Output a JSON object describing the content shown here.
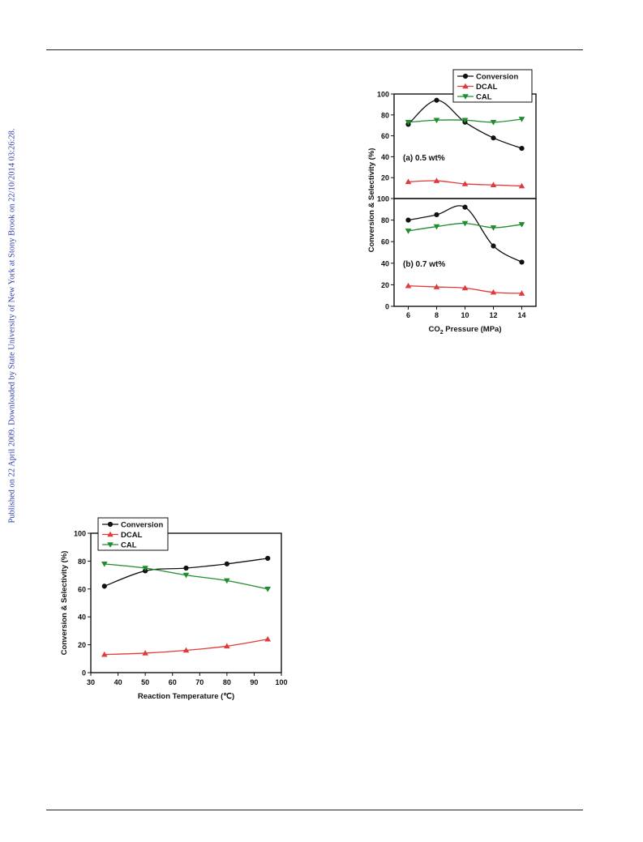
{
  "watermark": "Published on 22 April 2009. Downloaded by State University of New York at Stony Brook on 22/10/2014 03:26:28.",
  "chart_data": [
    {
      "id": "pressure",
      "type": "line",
      "xlabel": "CO",
      "xlabel_sub": "2",
      "xlabel_rest": " Pressure (MPa)",
      "ylabel": "Conversion & Selectivity (%)",
      "x": [
        6,
        8,
        10,
        12,
        14
      ],
      "xticks": [
        "6",
        "8",
        "10",
        "12",
        "14"
      ],
      "xlim": [
        5,
        15
      ],
      "legend": [
        {
          "name": "Conversion",
          "color": "#111111",
          "marker": "circle"
        },
        {
          "name": "DCAL",
          "color": "#e23a3a",
          "marker": "triangle-up"
        },
        {
          "name": "CAL",
          "color": "#1f8c2e",
          "marker": "triangle-down"
        }
      ],
      "legend_position": "top-right",
      "panels": [
        {
          "label": "(a)  0.5 wt%",
          "ylim": [
            0,
            100
          ],
          "yticks": [
            "20",
            "40",
            "60",
            "80",
            "100"
          ],
          "series": [
            {
              "name": "Conversion",
              "values": [
                71,
                94,
                73,
                58,
                48
              ]
            },
            {
              "name": "DCAL",
              "values": [
                16,
                17,
                14,
                13,
                12
              ]
            },
            {
              "name": "CAL",
              "values": [
                73,
                75,
                75,
                73,
                76
              ]
            }
          ]
        },
        {
          "label": "(b)  0.7 wt%",
          "ylim": [
            0,
            100
          ],
          "yticks": [
            "0",
            "20",
            "40",
            "60",
            "80",
            "100"
          ],
          "series": [
            {
              "name": "Conversion",
              "values": [
                80,
                85,
                92,
                56,
                41
              ]
            },
            {
              "name": "DCAL",
              "values": [
                19,
                18,
                17,
                13,
                12
              ]
            },
            {
              "name": "CAL",
              "values": [
                70,
                74,
                77,
                73,
                76
              ]
            }
          ]
        }
      ]
    },
    {
      "id": "temperature",
      "type": "line",
      "xlabel": "Reaction Temperature (℃)",
      "ylabel": "Conversion & Selectivity (%)",
      "x": [
        35,
        50,
        65,
        80,
        95
      ],
      "xticks": [
        "30",
        "40",
        "50",
        "60",
        "70",
        "80",
        "90",
        "100"
      ],
      "yticks": [
        "0",
        "20",
        "40",
        "60",
        "80",
        "100"
      ],
      "xlim": [
        30,
        100
      ],
      "ylim": [
        0,
        100
      ],
      "legend": [
        {
          "name": "Conversion",
          "color": "#111111",
          "marker": "circle"
        },
        {
          "name": "DCAL",
          "color": "#e23a3a",
          "marker": "triangle-up"
        },
        {
          "name": "CAL",
          "color": "#1f8c2e",
          "marker": "triangle-down"
        }
      ],
      "legend_position": "top-left",
      "series": [
        {
          "name": "Conversion",
          "values": [
            62,
            73,
            75,
            78,
            82
          ]
        },
        {
          "name": "DCAL",
          "values": [
            13,
            14,
            16,
            19,
            24
          ]
        },
        {
          "name": "CAL",
          "values": [
            78,
            75,
            70,
            66,
            60
          ]
        }
      ]
    }
  ]
}
